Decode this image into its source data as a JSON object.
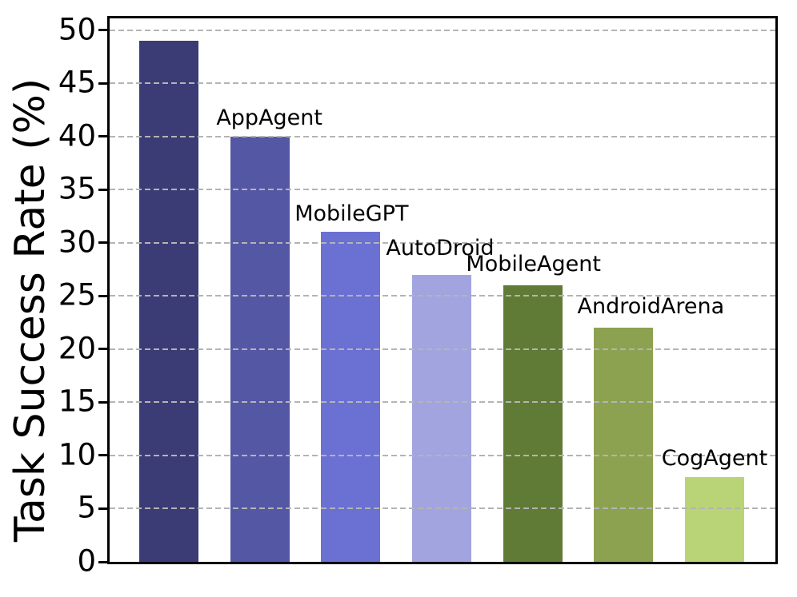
{
  "chart_data": {
    "type": "bar",
    "title": "",
    "xlabel": "",
    "ylabel": "Task Success Rate (%)",
    "ylim": [
      0,
      51.1
    ],
    "yticks": [
      0,
      5,
      10,
      15,
      20,
      25,
      30,
      35,
      40,
      45,
      50
    ],
    "grid": {
      "axis": "y",
      "style": "dashed",
      "color": "#b4b4b4",
      "above_bars": true
    },
    "legend": "none",
    "frame_color": "#000000",
    "background_color": "#ffffff",
    "x_tick_labels": [],
    "bars": [
      {
        "label": "",
        "value": 49,
        "color": "#3b3c75"
      },
      {
        "label": "AppAgent",
        "value": 40,
        "color": "#5457a4"
      },
      {
        "label": "MobileGPT",
        "value": 31,
        "color": "#6b70d3"
      },
      {
        "label": "AutoDroid",
        "value": 27,
        "color": "#a2a4e0"
      },
      {
        "label": "MobileAgent",
        "value": 26,
        "color": "#5f7b35"
      },
      {
        "label": "AndroidArena",
        "value": 22,
        "color": "#8da250"
      },
      {
        "label": "CogAgent",
        "value": 8,
        "color": "#b8d476"
      }
    ]
  }
}
